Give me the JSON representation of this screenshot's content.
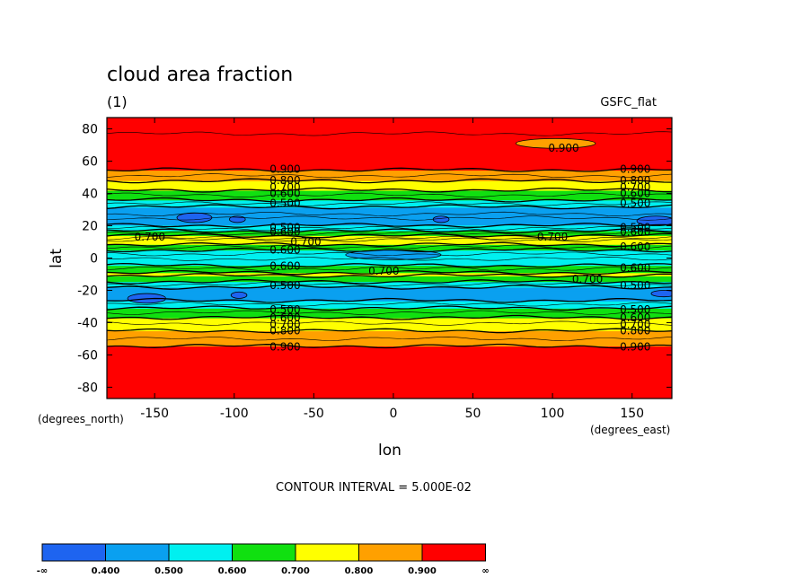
{
  "chart_data": {
    "type": "heatmap",
    "title": "cloud area fraction",
    "units": "(1)",
    "dataset": "GSFC_flat",
    "xlabel": "lon",
    "ylabel": "lat",
    "x_units": "(degrees_east)",
    "y_units": "(degrees_north)",
    "xlim": [
      -180,
      175
    ],
    "ylim": [
      -87,
      87
    ],
    "xticks": [
      -150,
      -100,
      -50,
      0,
      50,
      100,
      150
    ],
    "yticks": [
      -80,
      -60,
      -40,
      -20,
      0,
      20,
      40,
      60,
      80
    ],
    "contour_interval_text": "CONTOUR INTERVAL = 5.000E-02",
    "zonal_profile": [
      {
        "lat": -87,
        "value": 0.95
      },
      {
        "lat": -57,
        "value": 0.93
      },
      {
        "lat": -52,
        "value": 0.87
      },
      {
        "lat": -47,
        "value": 0.82
      },
      {
        "lat": -42,
        "value": 0.77
      },
      {
        "lat": -38,
        "value": 0.72
      },
      {
        "lat": -35,
        "value": 0.67
      },
      {
        "lat": -32,
        "value": 0.62
      },
      {
        "lat": -29,
        "value": 0.56
      },
      {
        "lat": -24,
        "value": 0.45
      },
      {
        "lat": -19,
        "value": 0.47
      },
      {
        "lat": -16,
        "value": 0.56
      },
      {
        "lat": -13,
        "value": 0.65
      },
      {
        "lat": -10,
        "value": 0.72
      },
      {
        "lat": -7,
        "value": 0.66
      },
      {
        "lat": -3,
        "value": 0.56
      },
      {
        "lat": 2,
        "value": 0.54
      },
      {
        "lat": 6,
        "value": 0.62
      },
      {
        "lat": 9,
        "value": 0.72
      },
      {
        "lat": 12,
        "value": 0.76
      },
      {
        "lat": 15,
        "value": 0.66
      },
      {
        "lat": 18,
        "value": 0.56
      },
      {
        "lat": 21,
        "value": 0.48
      },
      {
        "lat": 26,
        "value": 0.44
      },
      {
        "lat": 31,
        "value": 0.48
      },
      {
        "lat": 34,
        "value": 0.56
      },
      {
        "lat": 37,
        "value": 0.62
      },
      {
        "lat": 41,
        "value": 0.68
      },
      {
        "lat": 45,
        "value": 0.75
      },
      {
        "lat": 49,
        "value": 0.82
      },
      {
        "lat": 53,
        "value": 0.88
      },
      {
        "lat": 57,
        "value": 0.93
      },
      {
        "lat": 87,
        "value": 0.96
      }
    ],
    "contour_labels": [
      {
        "text": "0.900",
        "lon": 107,
        "lat": 68
      },
      {
        "text": "0.900",
        "lon": -68,
        "lat": 55
      },
      {
        "text": "0.900",
        "lon": 152,
        "lat": 55
      },
      {
        "text": "0.800",
        "lon": -68,
        "lat": 48
      },
      {
        "text": "0.800",
        "lon": 152,
        "lat": 48
      },
      {
        "text": "0.700",
        "lon": -68,
        "lat": 44
      },
      {
        "text": "0.700",
        "lon": 152,
        "lat": 44
      },
      {
        "text": "0.600",
        "lon": -68,
        "lat": 40
      },
      {
        "text": "0.600",
        "lon": 152,
        "lat": 40
      },
      {
        "text": "0.500",
        "lon": -68,
        "lat": 34
      },
      {
        "text": "0.500",
        "lon": 152,
        "lat": 34
      },
      {
        "text": "0.500",
        "lon": -68,
        "lat": 19
      },
      {
        "text": "0.500",
        "lon": 152,
        "lat": 19
      },
      {
        "text": "0.600",
        "lon": -68,
        "lat": 16
      },
      {
        "text": "0.600",
        "lon": 152,
        "lat": 16
      },
      {
        "text": "0.700",
        "lon": -153,
        "lat": 13
      },
      {
        "text": "0.700",
        "lon": -55,
        "lat": 10
      },
      {
        "text": "0.700",
        "lon": 100,
        "lat": 13
      },
      {
        "text": "0.600",
        "lon": -68,
        "lat": 5
      },
      {
        "text": "0.600",
        "lon": 152,
        "lat": 7
      },
      {
        "text": "0.600",
        "lon": -68,
        "lat": -5
      },
      {
        "text": "0.600",
        "lon": 152,
        "lat": -6
      },
      {
        "text": "0.700",
        "lon": -6,
        "lat": -8
      },
      {
        "text": "0.700",
        "lon": 122,
        "lat": -13
      },
      {
        "text": "0.500",
        "lon": -68,
        "lat": -17
      },
      {
        "text": "0.500",
        "lon": 152,
        "lat": -17
      },
      {
        "text": "0.500",
        "lon": -68,
        "lat": -32
      },
      {
        "text": "0.500",
        "lon": 152,
        "lat": -32
      },
      {
        "text": "0.600",
        "lon": -68,
        "lat": -37
      },
      {
        "text": "0.600",
        "lon": 152,
        "lat": -37
      },
      {
        "text": "0.700",
        "lon": -68,
        "lat": -41
      },
      {
        "text": "0.700",
        "lon": 152,
        "lat": -41
      },
      {
        "text": "0.800",
        "lon": -68,
        "lat": -45
      },
      {
        "text": "0.800",
        "lon": 152,
        "lat": -45
      },
      {
        "text": "0.900",
        "lon": -68,
        "lat": -55
      },
      {
        "text": "0.900",
        "lon": 152,
        "lat": -55
      }
    ],
    "colorbar": {
      "bins": [
        {
          "color": "#1e64f0",
          "from": "-∞",
          "to": "0.400"
        },
        {
          "color": "#0aa0f0",
          "from": "0.400",
          "to": "0.500"
        },
        {
          "color": "#00f0f0",
          "from": "0.500",
          "to": "0.600"
        },
        {
          "color": "#10e010",
          "from": "0.600",
          "to": "0.700"
        },
        {
          "color": "#ffff00",
          "from": "0.700",
          "to": "0.800"
        },
        {
          "color": "#ffa000",
          "from": "0.800",
          "to": "0.900"
        },
        {
          "color": "#ff0000",
          "from": "0.900",
          "to": "∞"
        }
      ],
      "tick_labels": [
        "-∞",
        "0.400",
        "0.500",
        "0.600",
        "0.700",
        "0.800",
        "0.900",
        "∞"
      ]
    }
  }
}
